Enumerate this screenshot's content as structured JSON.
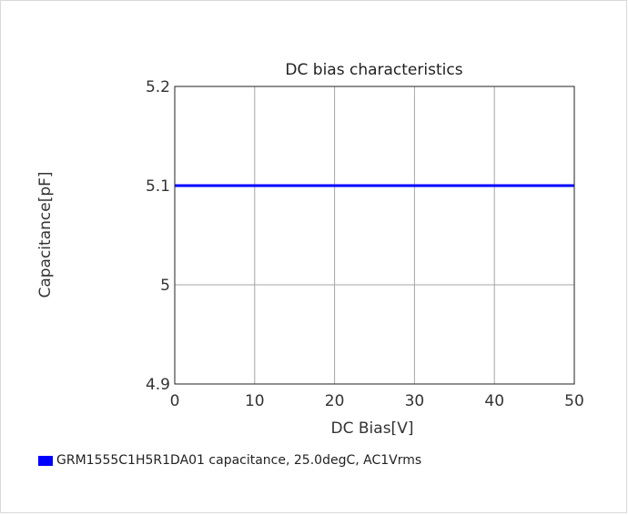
{
  "chart_data": {
    "type": "line",
    "title": "DC bias characteristics",
    "xlabel": "DC Bias[V]",
    "ylabel": "Capacitance[pF]",
    "xlim": [
      0,
      50
    ],
    "ylim": [
      4.9,
      5.2
    ],
    "xticks": [
      0,
      10,
      20,
      30,
      40,
      50
    ],
    "yticks": [
      4.9,
      5,
      5.1,
      5.2
    ],
    "xtick_labels": [
      "0",
      "10",
      "20",
      "30",
      "40",
      "50"
    ],
    "ytick_labels": [
      "4.9",
      "5",
      "5.1",
      "5.2"
    ],
    "grid": true,
    "legend_position": "bottom-left",
    "series": [
      {
        "name": "GRM1555C1H5R1DA01 capacitance, 25.0degC, AC1Vrms",
        "color": "#0000ff",
        "x": [
          0,
          50
        ],
        "y": [
          5.1,
          5.1
        ]
      }
    ]
  }
}
